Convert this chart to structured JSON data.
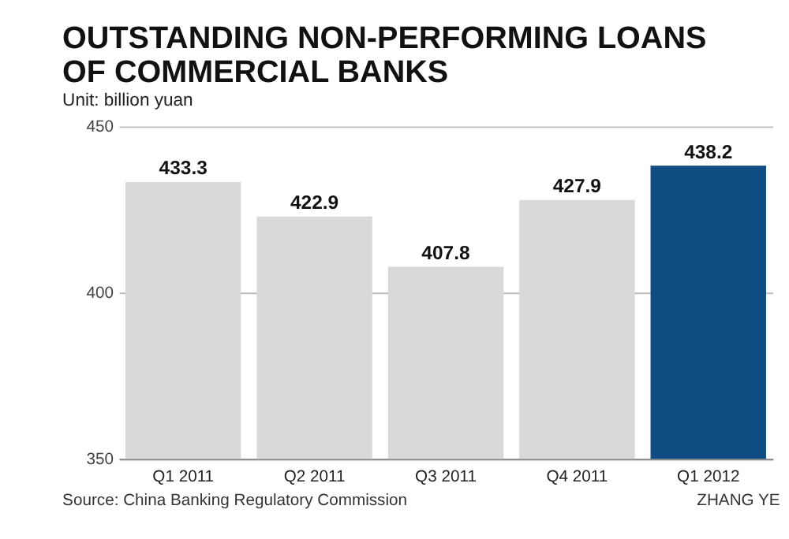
{
  "chart_data": {
    "type": "bar",
    "title": "OUTSTANDING NON-PERFORMING LOANS\nOF COMMERCIAL BANKS",
    "subtitle": "Unit: billion yuan",
    "categories": [
      "Q1 2011",
      "Q2 2011",
      "Q3 2011",
      "Q4 2011",
      "Q1 2012"
    ],
    "values": [
      433.3,
      422.9,
      407.8,
      427.9,
      438.2
    ],
    "colors": [
      "#d9d9d9",
      "#d9d9d9",
      "#d9d9d9",
      "#d9d9d9",
      "#0f4c81"
    ],
    "ylim": [
      350,
      450
    ],
    "yticks": [
      350,
      400,
      450
    ],
    "grid": "y",
    "data_labels": true,
    "annotations": [
      "Source: China Banking Regulatory Commission",
      "ZHANG YE"
    ]
  }
}
